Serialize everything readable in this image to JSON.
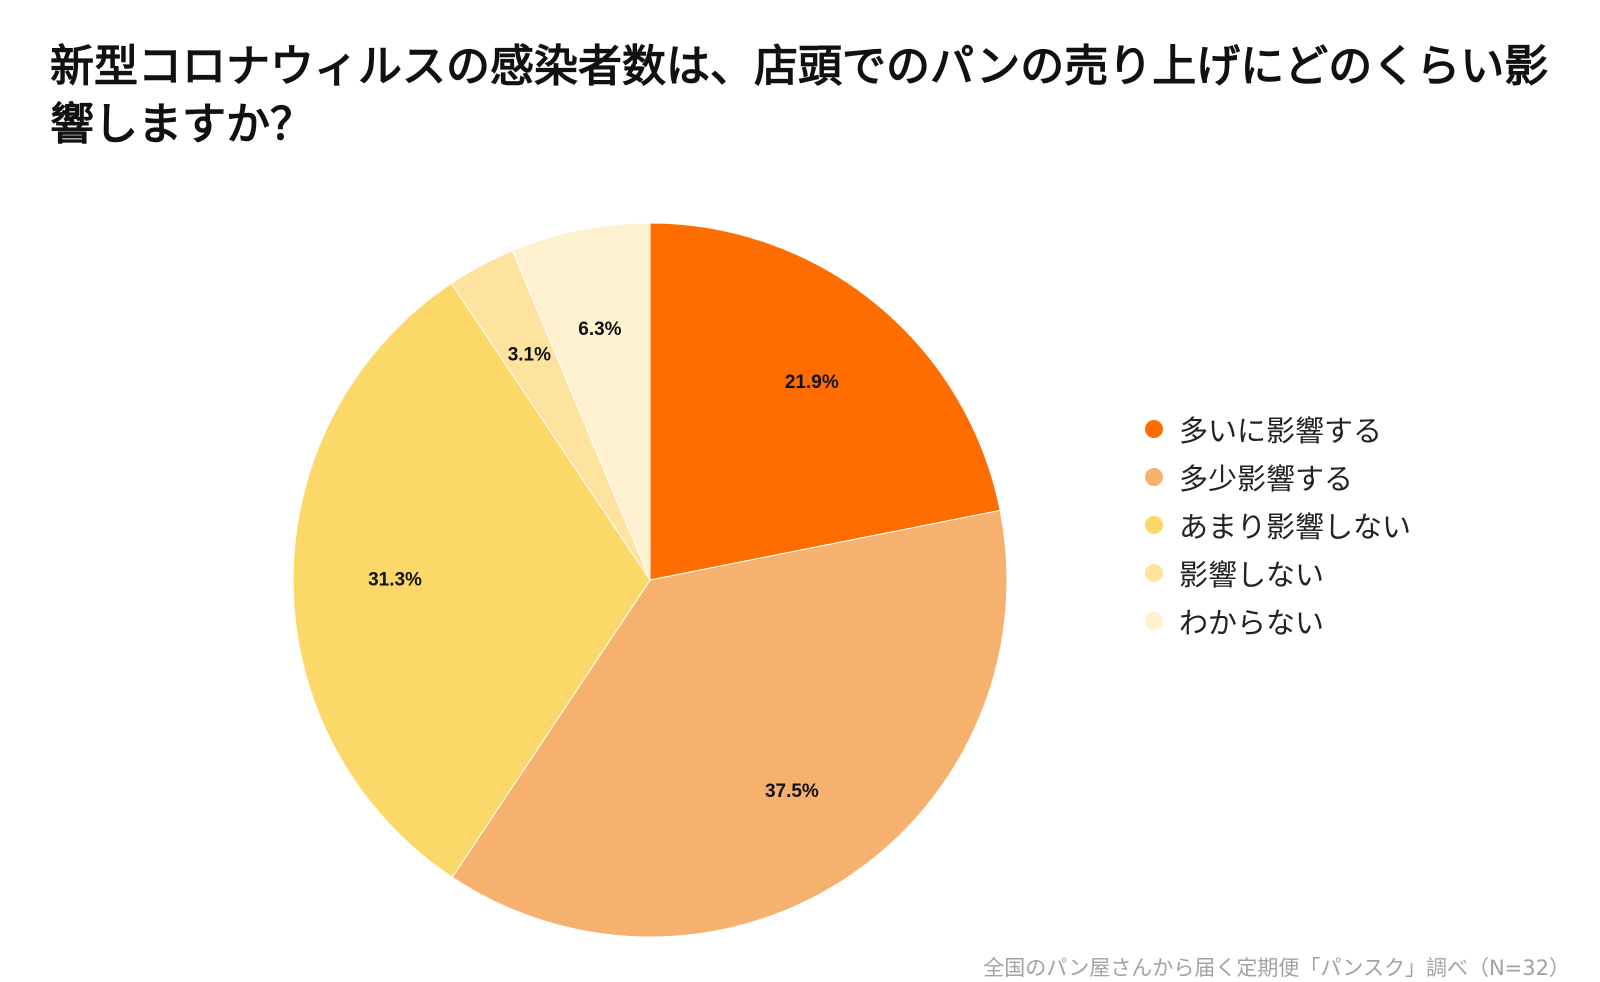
{
  "chart_data": {
    "type": "pie",
    "title": "新型コロナウィルスの感染者数は、店頭でのパンの売り上げにどのくらい影響しますか？",
    "categories": [
      "多いに影響する",
      "多少影響する",
      "あまり影響しない",
      "影響しない",
      "わからない"
    ],
    "values": [
      21.9,
      37.5,
      31.3,
      3.1,
      6.3
    ],
    "value_labels": [
      "21.9%",
      "37.5%",
      "31.3%",
      "3.1%",
      "6.3%"
    ],
    "colors": [
      "#FF6D01",
      "#F5B16D",
      "#FCD869",
      "#FEE39F",
      "#FEF1CF"
    ],
    "legend_position": "right",
    "start_angle": "12 o'clock",
    "direction": "clockwise",
    "source": "全国のパン屋さんから届く定期便「パンスク」調べ（N=32）"
  }
}
